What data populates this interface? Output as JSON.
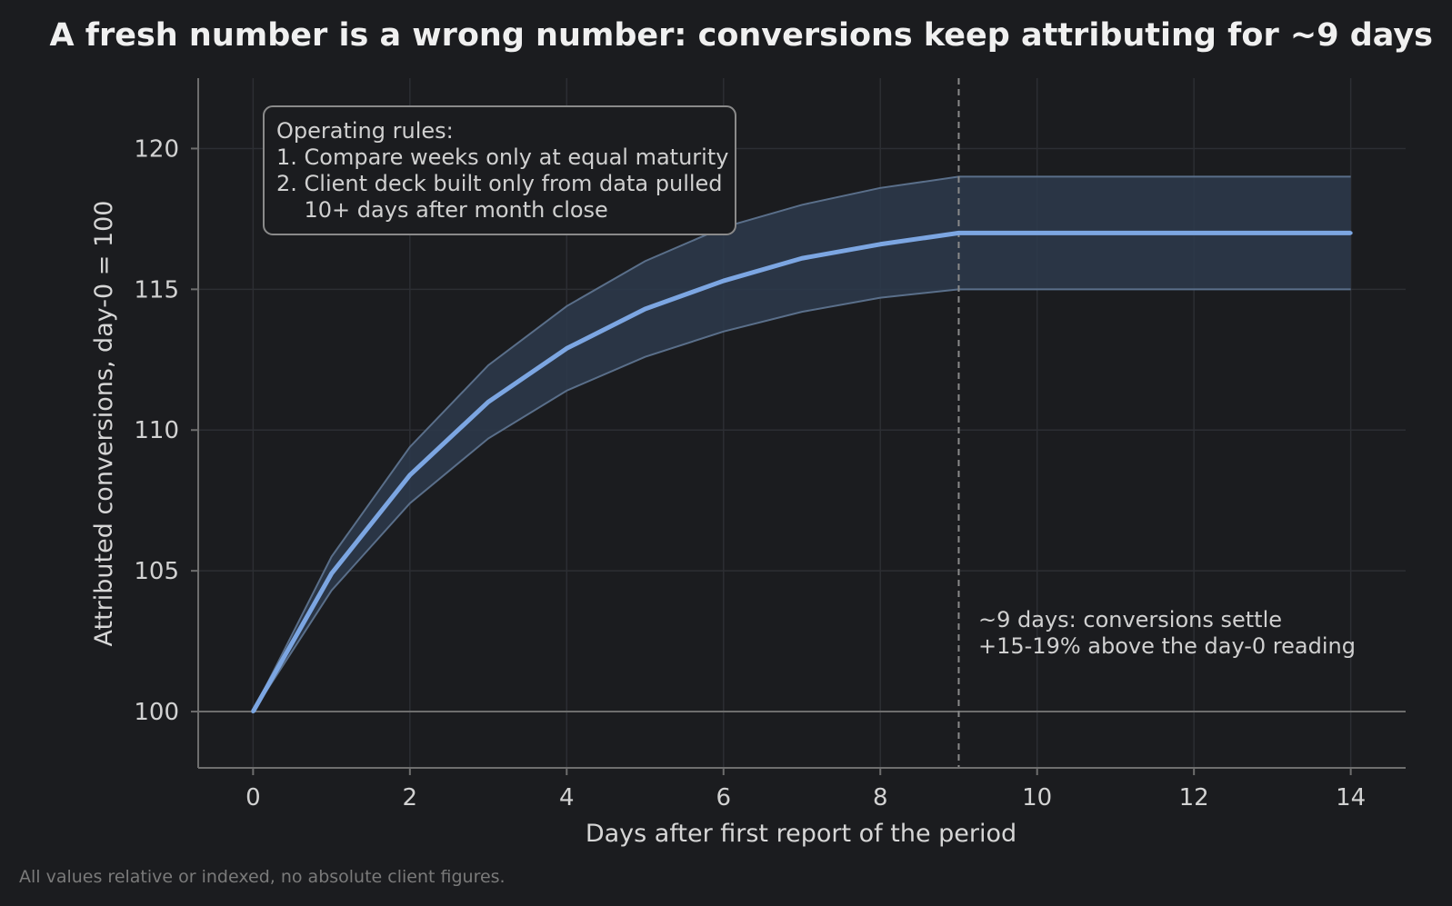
{
  "chart_data": {
    "type": "line",
    "title": "A fresh number is a wrong number: conversions keep attributing for ~9 days",
    "xlabel": "Days after first report of the period",
    "ylabel": "Attributed conversions, day-0 = 100",
    "xlim": [
      -0.7,
      14.7
    ],
    "ylim": [
      98,
      122.5
    ],
    "xticks": [
      0,
      2,
      4,
      6,
      8,
      10,
      12,
      14
    ],
    "yticks": [
      100,
      105,
      110,
      115,
      120
    ],
    "grid": true,
    "series": [
      {
        "role": "central",
        "x": [
          0,
          1,
          2,
          3,
          4,
          5,
          6,
          7,
          8,
          9,
          10,
          11,
          12,
          13,
          14
        ],
        "values": [
          100,
          104.9,
          108.4,
          111.0,
          112.9,
          114.3,
          115.3,
          116.1,
          116.6,
          117.0,
          117.0,
          117.0,
          117.0,
          117.0,
          117.0
        ]
      }
    ],
    "band": {
      "x": [
        0,
        1,
        2,
        3,
        4,
        5,
        6,
        7,
        8,
        9,
        10,
        11,
        12,
        13,
        14
      ],
      "upper": [
        100,
        105.5,
        109.4,
        112.3,
        114.4,
        116.0,
        117.2,
        118.0,
        118.6,
        119.0,
        119.0,
        119.0,
        119.0,
        119.0,
        119.0
      ],
      "lower": [
        100,
        104.3,
        107.4,
        109.7,
        111.4,
        112.6,
        113.5,
        114.2,
        114.7,
        115.0,
        115.0,
        115.0,
        115.0,
        115.0,
        115.0
      ]
    },
    "reference_line_y": 100,
    "vline_x": 9,
    "annotation_box": {
      "lines": [
        "Operating rules:",
        "1. Compare weeks only at equal maturity",
        "2. Client deck built only from data pulled",
        "    10+ days after month close"
      ]
    },
    "vline_note": {
      "lines": [
        "~9 days: conversions settle",
        "+15-19% above the day-0 reading"
      ]
    },
    "footnote": "All values relative or indexed, no absolute client figures.",
    "colors": {
      "background": "#1b1c1f",
      "line": "#7ca6e2",
      "band_fill": "#2d3a4c",
      "band_edge": "#5a6f8a",
      "grid": "#2c2e33",
      "axis": "#6e6e6e",
      "vline": "#8a8a8a"
    }
  }
}
